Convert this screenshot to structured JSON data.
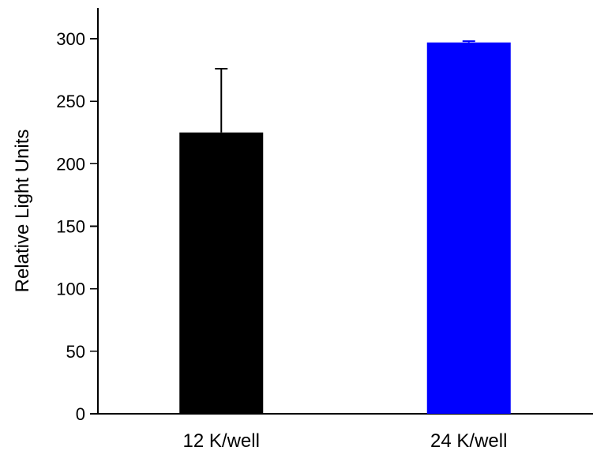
{
  "chart_data": {
    "type": "bar",
    "title": "",
    "xlabel": "",
    "ylabel": "Relative Light Units",
    "categories": [
      "12 K/well",
      "24 K/well"
    ],
    "values": [
      225,
      297
    ],
    "error_upper": [
      276,
      298
    ],
    "colors": [
      "#000000",
      "#0000ff"
    ],
    "ylim": [
      0,
      330
    ],
    "yticks": [
      0,
      50,
      100,
      150,
      200,
      250,
      300
    ],
    "grid": false,
    "legend": "none"
  }
}
